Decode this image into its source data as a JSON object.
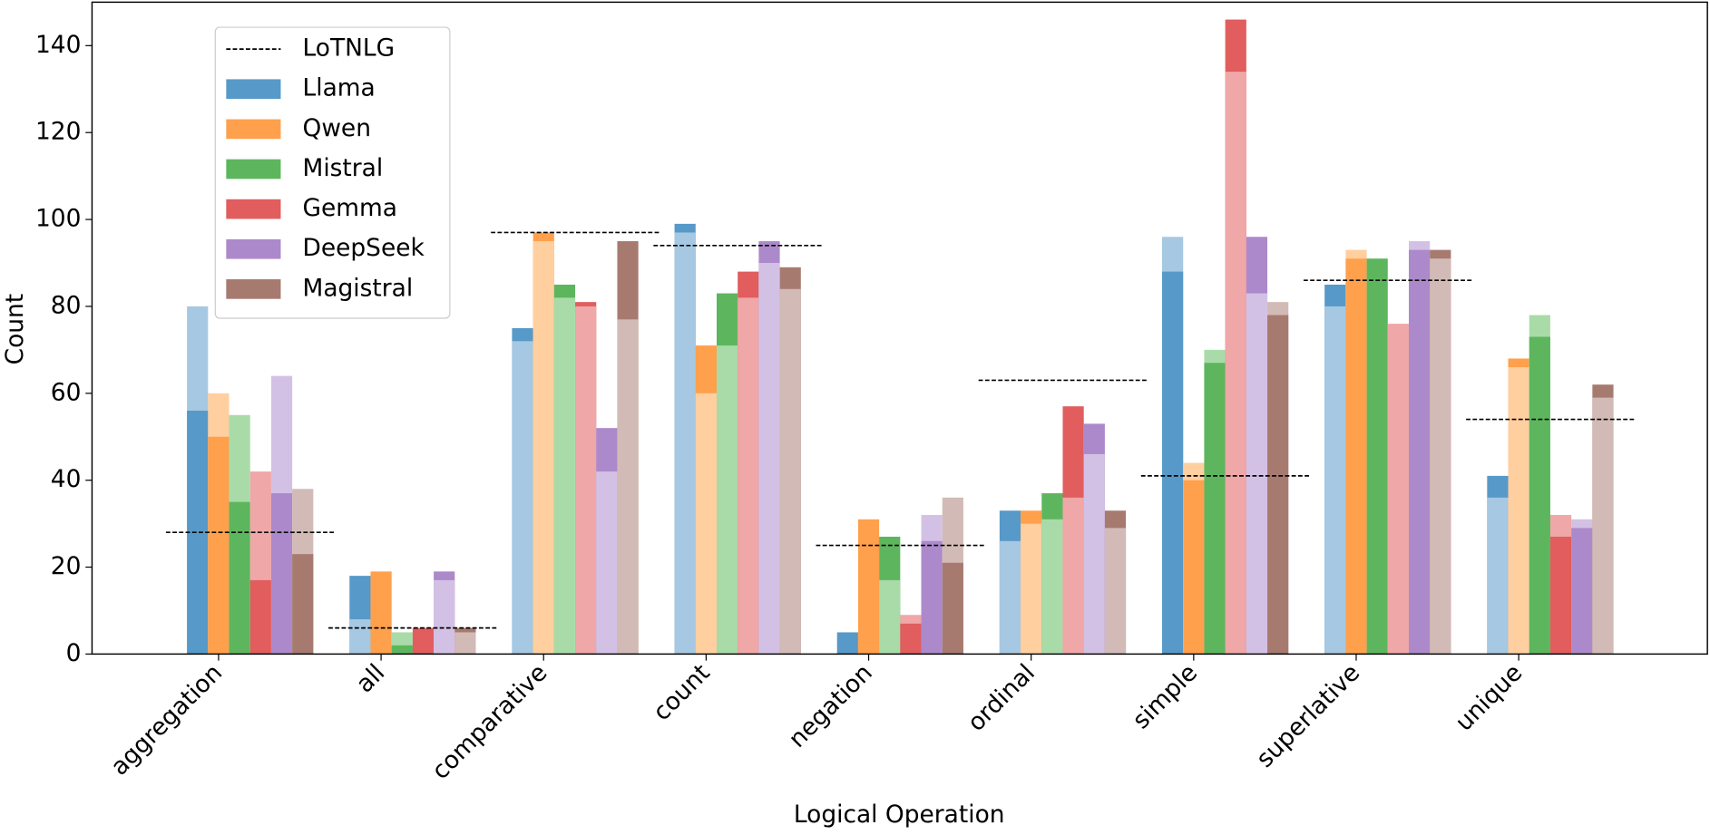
{
  "chart_data": {
    "type": "bar",
    "x_label": "Logical Operation",
    "y_label": "Count",
    "categories": [
      "aggregation",
      "all",
      "comparative",
      "count",
      "negation",
      "ordinal",
      "simple",
      "superlative",
      "unique"
    ],
    "ylim": [
      0,
      150
    ],
    "yticks": [
      0,
      20,
      40,
      60,
      80,
      100,
      120,
      140
    ],
    "legend": "upper left",
    "series": [
      {
        "name": "Llama",
        "color": "#5799c8",
        "values": [
          56,
          18,
          75,
          99,
          5,
          33,
          88,
          85,
          41
        ]
      },
      {
        "name": "Qwen",
        "color": "#ffa04d",
        "values": [
          50,
          19,
          97,
          71,
          31,
          33,
          40,
          91,
          68
        ]
      },
      {
        "name": "Mistral",
        "color": "#5db65d",
        "values": [
          35,
          2,
          85,
          83,
          27,
          37,
          67,
          91,
          73
        ]
      },
      {
        "name": "Gemma",
        "color": "#e15d5e",
        "values": [
          17,
          6,
          81,
          88,
          7,
          57,
          146,
          0,
          27
        ]
      },
      {
        "name": "DeepSeek",
        "color": "#ac89cb",
        "values": [
          37,
          19,
          52,
          95,
          26,
          53,
          96,
          93,
          29
        ]
      },
      {
        "name": "Magistral",
        "color": "#a77a70",
        "values": [
          23,
          6,
          95,
          89,
          21,
          33,
          78,
          93,
          62
        ]
      },
      {
        "color": "#a6c8e2",
        "values": [
          80,
          8,
          72,
          97,
          0,
          26,
          96,
          80,
          36
        ]
      },
      {
        "color": "#ffcf9f",
        "values": [
          60,
          0,
          95,
          60,
          0,
          30,
          44,
          93,
          66
        ]
      },
      {
        "color": "#a9dba9",
        "values": [
          55,
          5,
          82,
          71,
          17,
          31,
          70,
          0,
          78
        ]
      },
      {
        "color": "#efa7a7",
        "values": [
          42,
          0,
          80,
          82,
          9,
          36,
          134,
          76,
          32
        ]
      },
      {
        "color": "#d3c1e5",
        "values": [
          64,
          17,
          42,
          90,
          32,
          46,
          83,
          95,
          31
        ]
      },
      {
        "color": "#d2bbb6",
        "values": [
          38,
          5,
          77,
          84,
          36,
          29,
          81,
          91,
          59
        ]
      }
    ],
    "reference": {
      "name": "LoTNLG",
      "color": "#000000",
      "values": [
        28,
        6,
        97,
        94,
        25,
        63,
        41,
        86,
        54
      ]
    }
  }
}
